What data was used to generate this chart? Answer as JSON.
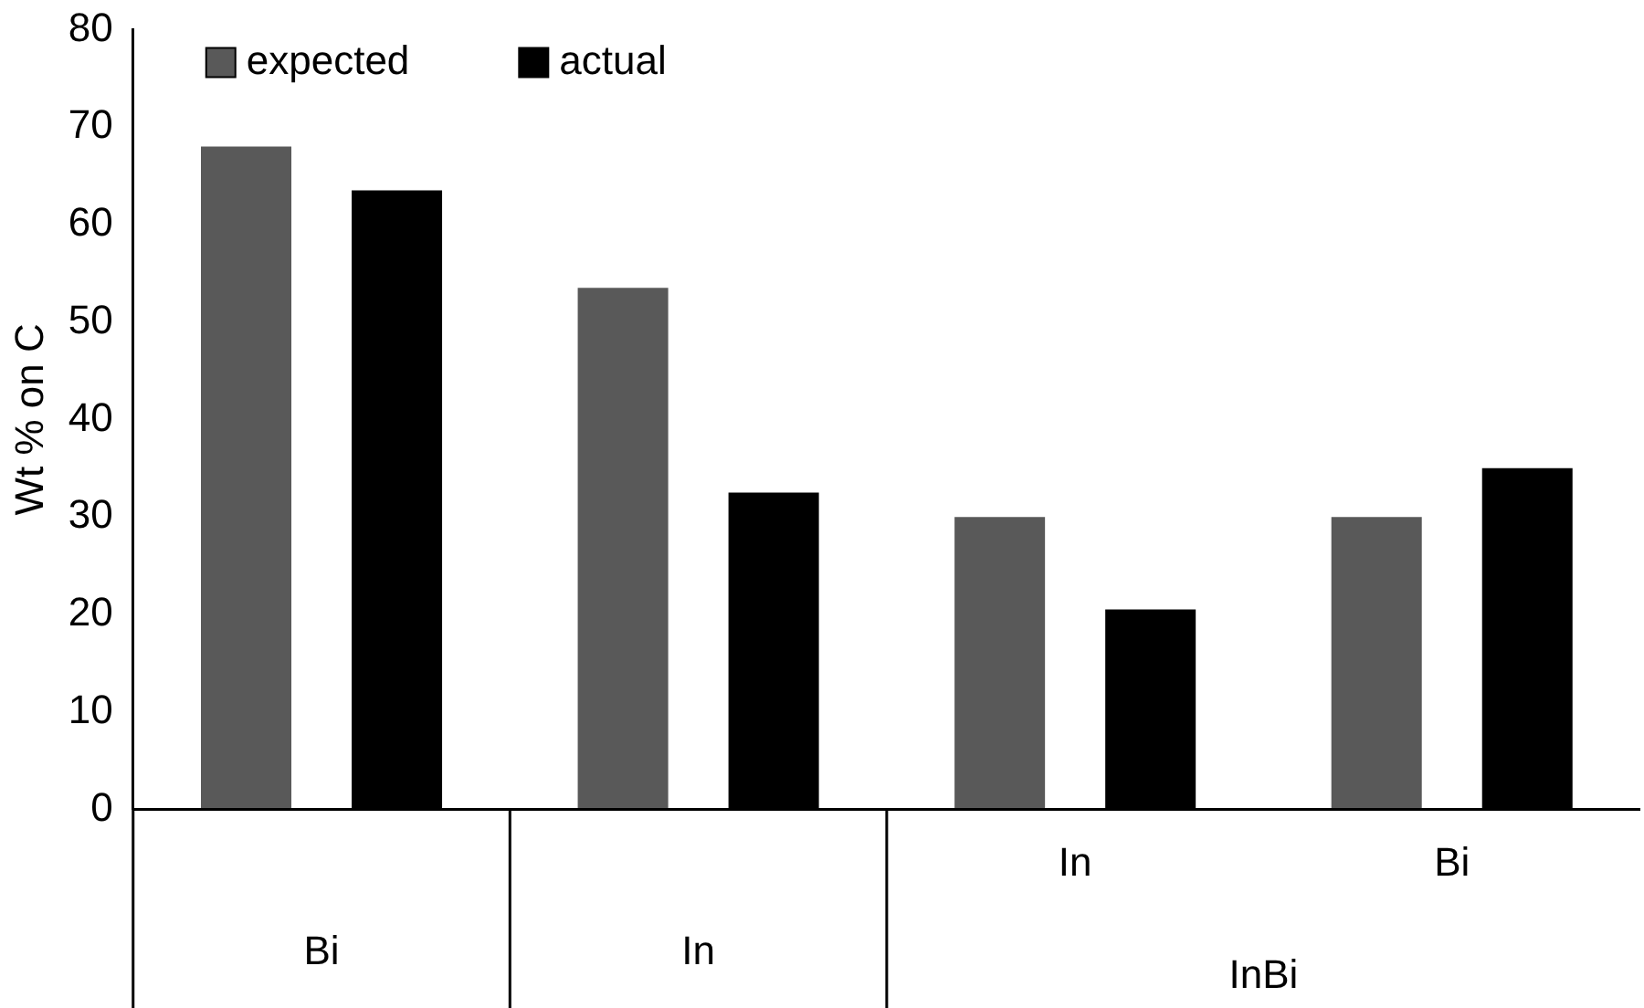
{
  "chart_data": {
    "type": "bar",
    "ylabel": "Wt % on C",
    "categories": [
      "Bi",
      "In",
      "In",
      "Bi"
    ],
    "series": [
      {
        "name": "expected",
        "color": "#595959",
        "values": [
          68,
          53.5,
          30,
          30
        ]
      },
      {
        "name": "actual",
        "color": "#000000",
        "values": [
          63.5,
          32.5,
          20.5,
          35
        ]
      }
    ],
    "ylim": [
      0,
      80
    ],
    "yticks": [
      0,
      10,
      20,
      30,
      40,
      50,
      60,
      70,
      80
    ],
    "grid": false,
    "legend": "top left",
    "annotations": [
      "InBi"
    ]
  }
}
